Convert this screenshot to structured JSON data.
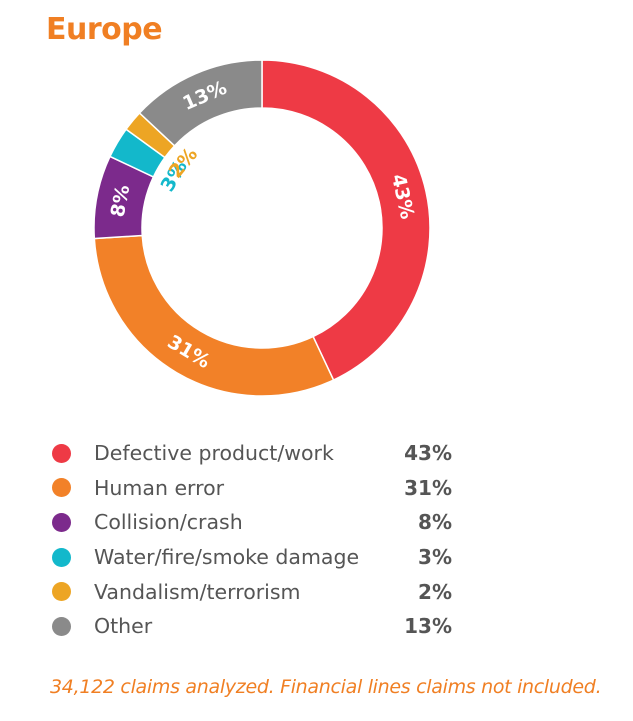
{
  "title": "Europe",
  "chart_data": {
    "type": "pie",
    "variant": "donut",
    "title": "Europe",
    "categories": [
      "Defective product/work",
      "Human error",
      "Collision/crash",
      "Water/fire/smoke damage",
      "Vandalism/terrorism",
      "Other"
    ],
    "values": [
      43,
      31,
      8,
      3,
      2,
      13
    ],
    "labels": [
      "43%",
      "31%",
      "8%",
      "3%",
      "2%",
      "13%"
    ],
    "colors": [
      "#ee3a45",
      "#f28128",
      "#7c2a8c",
      "#13b8cb",
      "#eda524",
      "#8a8a8a"
    ],
    "label_colors": [
      "#ffffff",
      "#ffffff",
      "#ffffff",
      "#13b8cb",
      "#eda524",
      "#ffffff"
    ]
  },
  "legend": [
    {
      "label": "Defective product/work",
      "value": "43%"
    },
    {
      "label": "Human error",
      "value": "31%"
    },
    {
      "label": "Collision/crash",
      "value": "8%"
    },
    {
      "label": "Water/fire/smoke damage",
      "value": "3%"
    },
    {
      "label": "Vandalism/terrorism",
      "value": "2%"
    },
    {
      "label": "Other",
      "value": "13%"
    }
  ],
  "footnote": "34,122 claims analyzed. Financial lines claims not included."
}
